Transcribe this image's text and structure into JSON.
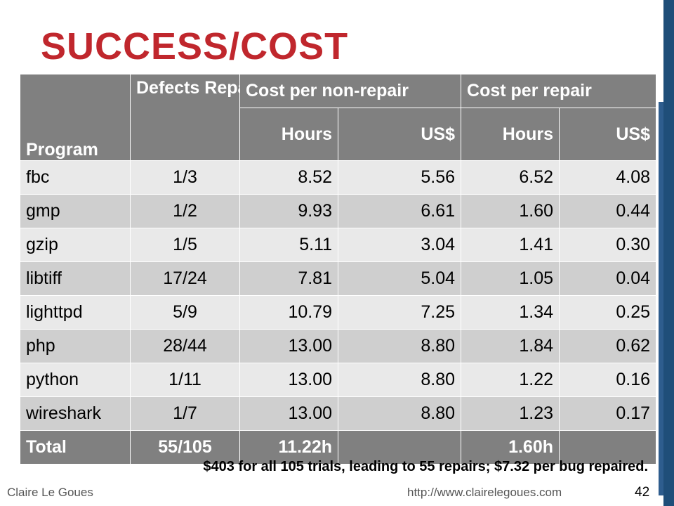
{
  "slide": {
    "title": "SUCCESS/COST",
    "note": "$403 for all 105 trials, leading to 55 repairs; $7.32 per bug repaired.",
    "author": "Claire Le Goues",
    "url": "http://www.clairelegoues.com",
    "page_number": "42"
  },
  "table": {
    "headers": {
      "program": "Program",
      "defects": "Defects Repaire d",
      "cost_nonrepair": "Cost per non-repair",
      "cost_repair": "Cost per repair",
      "hours": "Hours",
      "usd": "US$"
    },
    "rows": [
      [
        "fbc",
        "1/3",
        "8.52",
        "5.56",
        "6.52",
        "4.08"
      ],
      [
        "gmp",
        "1/2",
        "9.93",
        "6.61",
        "1.60",
        "0.44"
      ],
      [
        "gzip",
        "1/5",
        "5.11",
        "3.04",
        "1.41",
        "0.30"
      ],
      [
        "libtiff",
        "17/24",
        "7.81",
        "5.04",
        "1.05",
        "0.04"
      ],
      [
        "lighttpd",
        "5/9",
        "10.79",
        "7.25",
        "1.34",
        "0.25"
      ],
      [
        "php",
        "28/44",
        "13.00",
        "8.80",
        "1.84",
        "0.62"
      ],
      [
        "python",
        "1/11",
        "13.00",
        "8.80",
        "1.22",
        "0.16"
      ],
      [
        "wireshark",
        "1/7",
        "13.00",
        "8.80",
        "1.23",
        "0.17"
      ]
    ],
    "total": [
      "Total",
      "55/105",
      "11.22h",
      "",
      "1.60h",
      ""
    ]
  },
  "colors": {
    "title": "#c0272d",
    "header_bg": "#808080",
    "row_light": "#e9e9e9",
    "row_dark": "#cfcfcf",
    "sidebar": "#1f4e79"
  }
}
